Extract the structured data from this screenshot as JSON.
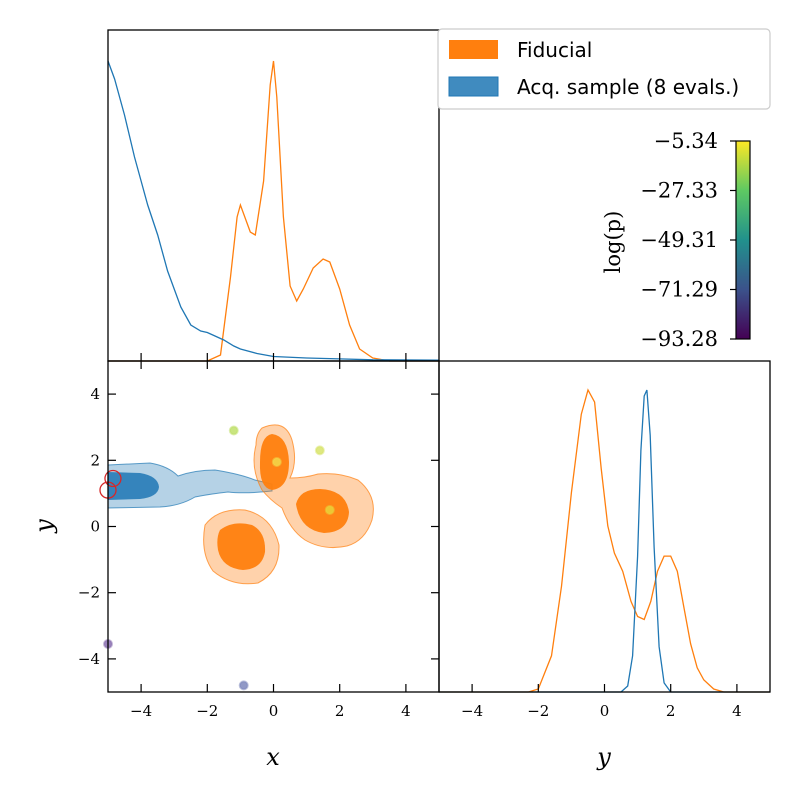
{
  "chart_data": [
    {
      "panel": "x-marginal",
      "type": "line",
      "x_range": [
        -5,
        5
      ],
      "series": [
        {
          "name": "Fiducial",
          "color": "#ff7f0e",
          "x": [
            -5,
            -4,
            -3,
            -2,
            -1.6,
            -1.3,
            -1.1,
            -1.0,
            -0.9,
            -0.7,
            -0.55,
            -0.3,
            -0.1,
            0,
            0.1,
            0.3,
            0.5,
            0.7,
            0.9,
            1.2,
            1.5,
            1.7,
            2.0,
            2.3,
            2.6,
            3.0,
            3.5,
            4.0,
            5.0
          ],
          "y": [
            0,
            0,
            0,
            0,
            0.02,
            0.28,
            0.48,
            0.52,
            0.49,
            0.43,
            0.42,
            0.6,
            0.92,
            1.0,
            0.88,
            0.48,
            0.25,
            0.2,
            0.24,
            0.31,
            0.34,
            0.33,
            0.24,
            0.12,
            0.04,
            0.01,
            0,
            0,
            0
          ]
        },
        {
          "name": "Acq. sample (8 evals.)",
          "color": "#1f77b4",
          "x": [
            -5,
            -4.8,
            -4.5,
            -4.2,
            -4,
            -3.8,
            -3.5,
            -3.2,
            -3,
            -2.8,
            -2.5,
            -2.2,
            -2,
            -1.8,
            -1.5,
            -1.2,
            -1,
            -0.5,
            0,
            1,
            2,
            3,
            5
          ],
          "y": [
            1.0,
            0.94,
            0.82,
            0.68,
            0.6,
            0.52,
            0.42,
            0.3,
            0.24,
            0.18,
            0.12,
            0.1,
            0.095,
            0.085,
            0.07,
            0.05,
            0.04,
            0.025,
            0.015,
            0.01,
            0.007,
            0.004,
            0.003
          ]
        }
      ]
    },
    {
      "panel": "joint",
      "type": "scatter",
      "xlabel": "x",
      "ylabel": "y",
      "xlim": [
        -5,
        5
      ],
      "ylim": [
        -5,
        5
      ],
      "xticks": [
        "−4",
        "−2",
        "0",
        "2",
        "4"
      ],
      "yticks": [
        "4",
        "2",
        "0",
        "−2",
        "−4"
      ],
      "points": [
        {
          "x": -1.2,
          "y": 2.9,
          "color": "#bfe06a"
        },
        {
          "x": 1.4,
          "y": 2.3,
          "color": "#d8e46a"
        },
        {
          "x": 0.1,
          "y": 1.95,
          "color": "#f2d84a"
        },
        {
          "x": 1.7,
          "y": 0.5,
          "color": "#e9d23a"
        },
        {
          "x": -5.0,
          "y": -3.55,
          "color": "#8a6fb0"
        },
        {
          "x": -0.9,
          "y": -4.8,
          "color": "#7e87bc"
        }
      ],
      "sampled_points": [
        {
          "x": -4.85,
          "y": 1.45,
          "color": "#d62728"
        },
        {
          "x": -5.0,
          "y": 1.1,
          "color": "#d62728"
        }
      ],
      "fiducial_regions_color": "#ff7f0e",
      "acquisition_region_color": "#1f77b4"
    },
    {
      "panel": "y-marginal",
      "type": "line",
      "xlabel": "y",
      "xlim": [
        -5,
        5
      ],
      "xticks": [
        "−4",
        "−2",
        "0",
        "2",
        "4"
      ],
      "series": [
        {
          "name": "Fiducial",
          "color": "#ff7f0e",
          "x": [
            -5,
            -2.3,
            -2.0,
            -1.6,
            -1.3,
            -1.0,
            -0.7,
            -0.5,
            -0.3,
            -0.1,
            0.1,
            0.3,
            0.55,
            0.8,
            1.0,
            1.2,
            1.4,
            1.6,
            1.8,
            2.0,
            2.2,
            2.4,
            2.6,
            2.8,
            3.0,
            3.3,
            3.6,
            4.0,
            5.0
          ],
          "y": [
            0,
            0,
            0.01,
            0.12,
            0.35,
            0.66,
            0.92,
            1.0,
            0.96,
            0.74,
            0.55,
            0.46,
            0.4,
            0.3,
            0.25,
            0.24,
            0.3,
            0.4,
            0.45,
            0.45,
            0.4,
            0.28,
            0.16,
            0.08,
            0.04,
            0.01,
            0,
            0,
            0
          ]
        },
        {
          "name": "Acq. sample (8 evals.)",
          "color": "#1f77b4",
          "x": [
            -5,
            0.5,
            0.7,
            0.85,
            1.0,
            1.1,
            1.2,
            1.28,
            1.38,
            1.5,
            1.65,
            1.8,
            2.0,
            5.0
          ],
          "y": [
            0,
            0,
            0.02,
            0.12,
            0.45,
            0.8,
            0.98,
            1.0,
            0.85,
            0.48,
            0.15,
            0.03,
            0,
            0
          ]
        }
      ]
    }
  ],
  "legend": {
    "items": [
      {
        "label": "Fiducial",
        "color": "#ff7f0e"
      },
      {
        "label": "Acq. sample (8 evals.)",
        "color": "#1f77b4"
      }
    ]
  },
  "colorbar": {
    "label": "log(p)",
    "ticks": [
      "−5.34",
      "−27.33",
      "−49.31",
      "−71.29",
      "−93.28"
    ],
    "colormap": "viridis"
  }
}
